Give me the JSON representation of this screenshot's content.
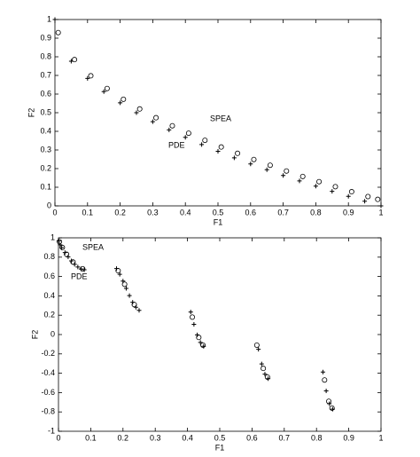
{
  "chart_data": [
    {
      "type": "scatter",
      "x_label": "F1",
      "y_label": "F2",
      "xlim": [
        0,
        1
      ],
      "ylim": [
        0,
        1
      ],
      "xticks": [
        0,
        0.1,
        0.2,
        0.3,
        0.4,
        0.5,
        0.6,
        0.7,
        0.8,
        0.9,
        1
      ],
      "yticks": [
        0,
        0.1,
        0.2,
        0.3,
        0.4,
        0.5,
        0.6,
        0.7,
        0.8,
        0.9,
        1
      ],
      "series": [
        {
          "name": "SPEA",
          "color": "#000000",
          "marker": "o",
          "x": [
            0.01,
            0.06,
            0.11,
            0.16,
            0.21,
            0.26,
            0.31,
            0.36,
            0.41,
            0.46,
            0.51,
            0.56,
            0.61,
            0.66,
            0.71,
            0.76,
            0.81,
            0.86,
            0.91,
            0.96,
            0.99
          ],
          "values": [
            0.93,
            0.785,
            0.698,
            0.63,
            0.572,
            0.52,
            0.473,
            0.43,
            0.39,
            0.352,
            0.316,
            0.282,
            0.249,
            0.218,
            0.187,
            0.158,
            0.13,
            0.103,
            0.076,
            0.05,
            0.035
          ]
        },
        {
          "name": "PDE",
          "color": "#000000",
          "marker": "+",
          "x": [
            0,
            0.05,
            0.1,
            0.15,
            0.2,
            0.25,
            0.3,
            0.35,
            0.4,
            0.45,
            0.5,
            0.55,
            0.6,
            0.65,
            0.7,
            0.75,
            0.8,
            0.85,
            0.9,
            0.95,
            1
          ],
          "values": [
            1,
            0.776,
            0.684,
            0.613,
            0.553,
            0.5,
            0.452,
            0.408,
            0.368,
            0.329,
            0.293,
            0.258,
            0.225,
            0.194,
            0.163,
            0.134,
            0.106,
            0.078,
            0.051,
            0.025,
            0
          ]
        }
      ]
    },
    {
      "type": "scatter",
      "x_label": "F1",
      "y_label": "F2",
      "xlim": [
        0,
        1
      ],
      "ylim": [
        -1,
        1
      ],
      "xticks": [
        0,
        0.1,
        0.2,
        0.3,
        0.4,
        0.5,
        0.6,
        0.7,
        0.8,
        0.9,
        1
      ],
      "yticks": [
        -1,
        -0.8,
        -0.6,
        -0.4,
        -0.2,
        0,
        0.2,
        0.4,
        0.6,
        0.8,
        1
      ],
      "series": [
        {
          "name": "SPEA",
          "color": "#000000",
          "marker": "o",
          "x": [
            0.003,
            0.012,
            0.025,
            0.045,
            0.075,
            0.185,
            0.205,
            0.235,
            0.415,
            0.435,
            0.448,
            0.615,
            0.635,
            0.648,
            0.825,
            0.838,
            0.848
          ],
          "values": [
            0.96,
            0.9,
            0.83,
            0.75,
            0.68,
            0.66,
            0.52,
            0.31,
            0.18,
            -0.03,
            -0.11,
            -0.11,
            -0.35,
            -0.44,
            -0.47,
            -0.69,
            -0.76
          ]
        },
        {
          "name": "PDE",
          "color": "#000000",
          "marker": "+",
          "x": [
            0.001,
            0.005,
            0.01,
            0.02,
            0.03,
            0.04,
            0.05,
            0.06,
            0.07,
            0.08,
            0.18,
            0.19,
            0.2,
            0.21,
            0.22,
            0.23,
            0.24,
            0.25,
            0.41,
            0.42,
            0.43,
            0.44,
            0.45,
            0.62,
            0.63,
            0.64,
            0.65,
            0.82,
            0.83,
            0.84,
            0.85
          ],
          "values": [
            0.968,
            0.928,
            0.897,
            0.847,
            0.803,
            0.762,
            0.726,
            0.698,
            0.678,
            0.67,
            0.682,
            0.623,
            0.553,
            0.477,
            0.402,
            0.334,
            0.282,
            0.25,
            0.233,
            0.105,
            -0.004,
            -0.081,
            -0.121,
            -0.152,
            -0.304,
            -0.409,
            -0.456,
            -0.388,
            -0.582,
            -0.716,
            -0.772
          ]
        }
      ]
    }
  ]
}
